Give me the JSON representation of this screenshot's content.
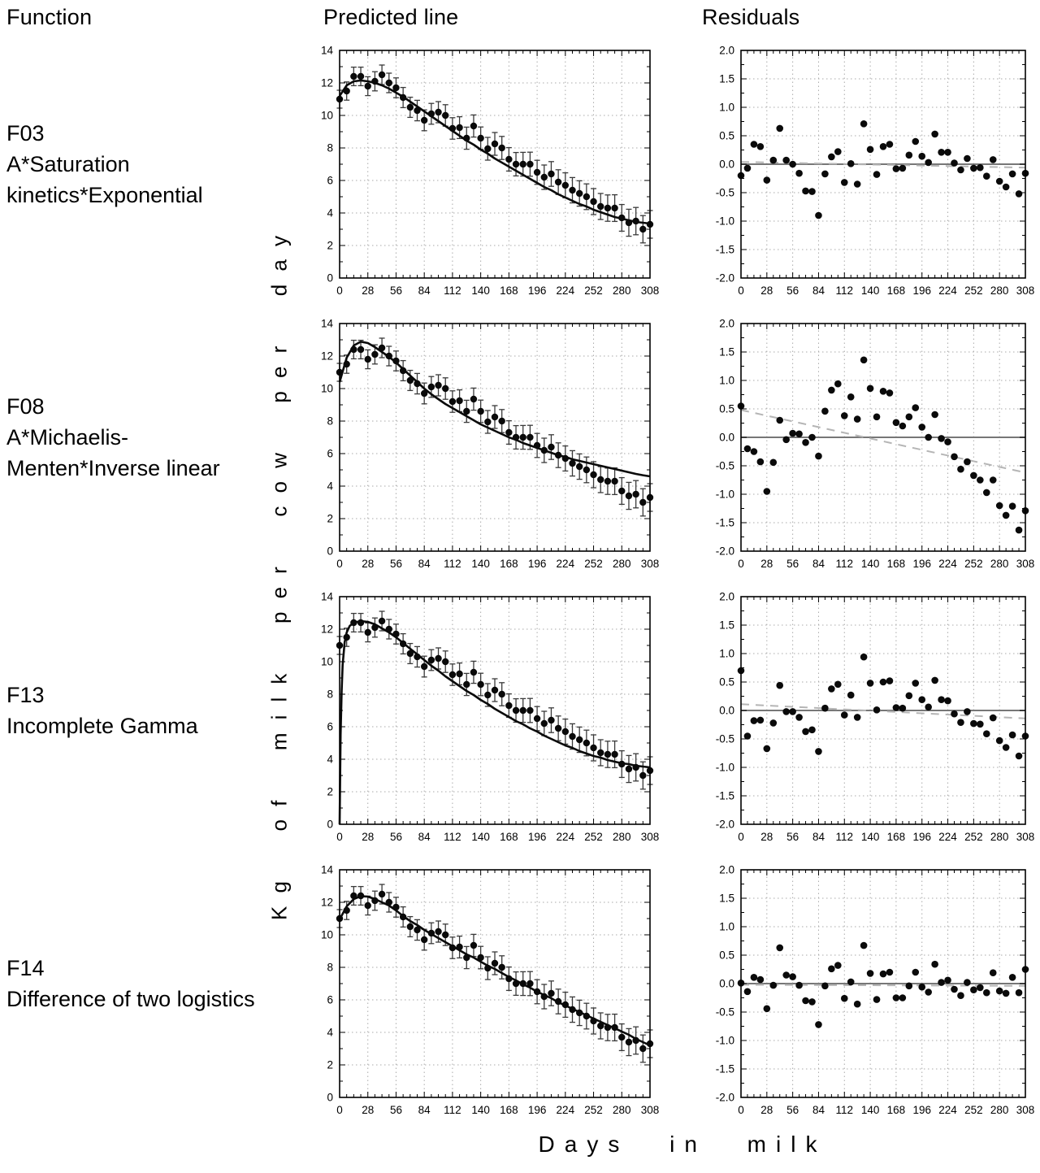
{
  "headers": {
    "function": "Function",
    "predicted": "Predicted line",
    "residuals": "Residuals"
  },
  "axes": {
    "y_label": "Kg of milk per cow per day",
    "x_label": "Days in milk",
    "predicted": {
      "xlim": [
        0,
        308
      ],
      "ylim": [
        0,
        14
      ],
      "x_ticks": [
        0,
        28,
        56,
        84,
        112,
        140,
        168,
        196,
        224,
        252,
        280,
        308
      ],
      "y_ticks": [
        0,
        2,
        4,
        6,
        8,
        10,
        12,
        14
      ],
      "y_tick_labels": [
        "0",
        "2",
        "4",
        "6",
        "8",
        "10",
        "12",
        "14"
      ],
      "x_minor_step": 7,
      "y_minor_step": 1,
      "grid": true
    },
    "residuals": {
      "xlim": [
        0,
        308
      ],
      "ylim": [
        -2,
        2
      ],
      "x_ticks": [
        0,
        28,
        56,
        84,
        112,
        140,
        168,
        196,
        224,
        252,
        280,
        308
      ],
      "y_ticks": [
        -2,
        -1.5,
        -1,
        -0.5,
        0,
        0.5,
        1,
        1.5,
        2
      ],
      "y_tick_labels": [
        "-2.0",
        "-1.5",
        "-1.0",
        "-0.5",
        "0.0",
        "0.5",
        "1.0",
        "1.5",
        "2.0"
      ],
      "x_minor_step": 7,
      "y_minor_step": 0.25,
      "grid": true,
      "zero_line": true
    }
  },
  "chart_data": {
    "type": "small-multiples",
    "description": "4 rows: lactation curve fits (scatter with error bars + fitted line) and residual scatter plots",
    "x_days": [
      0,
      7,
      14,
      21,
      28,
      35,
      42,
      49,
      56,
      63,
      70,
      77,
      84,
      91,
      98,
      105,
      112,
      119,
      126,
      133,
      140,
      147,
      154,
      161,
      168,
      175,
      182,
      189,
      196,
      203,
      210,
      217,
      224,
      231,
      238,
      245,
      252,
      259,
      266,
      273,
      280,
      287,
      294,
      301,
      308
    ],
    "observed": [
      11.0,
      11.5,
      12.4,
      12.4,
      11.8,
      12.1,
      12.5,
      12.0,
      11.7,
      11.1,
      10.5,
      10.3,
      9.7,
      10.1,
      10.2,
      10.0,
      9.2,
      9.25,
      8.6,
      9.35,
      8.6,
      7.95,
      8.25,
      8.0,
      7.3,
      7.0,
      7.0,
      7.0,
      6.5,
      6.2,
      6.4,
      5.9,
      5.7,
      5.4,
      5.2,
      5.0,
      4.7,
      4.4,
      4.3,
      4.3,
      3.7,
      3.4,
      3.5,
      3.0,
      3.3
    ],
    "error_bars": [
      0.55,
      0.56,
      0.57,
      0.57,
      0.58,
      0.59,
      0.6,
      0.6,
      0.61,
      0.62,
      0.62,
      0.63,
      0.64,
      0.64,
      0.65,
      0.66,
      0.66,
      0.67,
      0.68,
      0.68,
      0.69,
      0.7,
      0.7,
      0.71,
      0.72,
      0.72,
      0.73,
      0.74,
      0.74,
      0.75,
      0.76,
      0.76,
      0.77,
      0.78,
      0.78,
      0.79,
      0.8,
      0.8,
      0.81,
      0.82,
      0.82,
      0.83,
      0.84,
      0.84,
      0.85
    ],
    "rows": [
      {
        "function_id": "F03",
        "function_name": "A*Saturation kinetics*Exponential",
        "predicted_curve": {
          "x": [
            0,
            7,
            14,
            21,
            28,
            35,
            42,
            49,
            56,
            63,
            70,
            77,
            84,
            91,
            98,
            105,
            112,
            119,
            126,
            133,
            140,
            147,
            154,
            161,
            168,
            175,
            182,
            189,
            196,
            203,
            210,
            217,
            224,
            231,
            238,
            245,
            252,
            259,
            266,
            273,
            280,
            287,
            294,
            301,
            308
          ],
          "y": [
            11.2,
            11.85,
            12.1,
            12.15,
            12.1,
            12.0,
            11.85,
            11.65,
            11.4,
            11.15,
            10.85,
            10.55,
            10.25,
            9.95,
            9.65,
            9.35,
            9.05,
            8.75,
            8.45,
            8.2,
            7.9,
            7.65,
            7.35,
            7.1,
            6.85,
            6.6,
            6.35,
            6.1,
            5.85,
            5.6,
            5.4,
            5.15,
            4.95,
            4.75,
            4.55,
            4.4,
            4.2,
            4.05,
            3.9,
            3.75,
            3.65,
            3.55,
            3.45,
            3.4,
            3.35
          ]
        },
        "residuals": [
          -0.2,
          -0.07,
          0.35,
          0.31,
          -0.28,
          0.07,
          0.63,
          0.07,
          0.0,
          -0.16,
          -0.47,
          -0.48,
          -0.9,
          -0.17,
          0.13,
          0.22,
          -0.32,
          0.01,
          -0.35,
          0.71,
          0.26,
          -0.18,
          0.31,
          0.35,
          -0.08,
          -0.07,
          0.16,
          0.4,
          0.14,
          0.03,
          0.53,
          0.21,
          0.21,
          0.02,
          -0.1,
          0.1,
          -0.07,
          -0.06,
          -0.21,
          0.08,
          -0.3,
          -0.4,
          -0.17,
          -0.52,
          -0.16
        ],
        "residual_trend": {
          "x": [
            0,
            308
          ],
          "y": [
            0.04,
            -0.06
          ]
        }
      },
      {
        "function_id": "F08",
        "function_name": "A*Michaelis-Menten*Inverse linear",
        "predicted_curve": {
          "x": [
            0,
            7,
            14,
            21,
            28,
            35,
            42,
            49,
            56,
            63,
            70,
            77,
            84,
            91,
            98,
            105,
            112,
            119,
            126,
            133,
            140,
            147,
            154,
            161,
            168,
            175,
            182,
            189,
            196,
            203,
            210,
            217,
            224,
            231,
            238,
            245,
            252,
            259,
            266,
            273,
            280,
            287,
            294,
            301,
            308
          ],
          "y": [
            10.4,
            11.9,
            12.65,
            12.88,
            12.8,
            12.55,
            12.25,
            11.95,
            11.6,
            11.2,
            10.8,
            10.4,
            10.0,
            9.65,
            9.35,
            9.05,
            8.8,
            8.55,
            8.3,
            8.05,
            7.8,
            7.6,
            7.4,
            7.2,
            7.0,
            6.85,
            6.65,
            6.5,
            6.35,
            6.2,
            6.05,
            5.9,
            5.8,
            5.65,
            5.55,
            5.45,
            5.35,
            5.25,
            5.15,
            5.05,
            4.95,
            4.85,
            4.75,
            4.67,
            4.6
          ]
        },
        "residuals": [
          0.55,
          -0.2,
          -0.25,
          -0.43,
          -0.95,
          -0.44,
          0.3,
          -0.04,
          0.07,
          0.06,
          -0.09,
          0.0,
          -0.33,
          0.46,
          0.83,
          0.94,
          0.38,
          0.71,
          0.32,
          1.36,
          0.86,
          0.36,
          0.81,
          0.78,
          0.26,
          0.2,
          0.36,
          0.52,
          0.18,
          0.0,
          0.4,
          -0.02,
          -0.08,
          -0.34,
          -0.56,
          -0.43,
          -0.67,
          -0.75,
          -0.97,
          -0.75,
          -1.2,
          -1.37,
          -1.21,
          -1.63,
          -1.29
        ],
        "residual_trend": {
          "x": [
            0,
            308
          ],
          "y": [
            0.48,
            -0.62
          ]
        }
      },
      {
        "function_id": "F13",
        "function_name": "Incomplete Gamma",
        "predicted_curve": {
          "x": [
            0,
            1,
            2,
            3,
            5,
            7,
            10,
            14,
            21,
            28,
            35,
            42,
            49,
            56,
            63,
            70,
            77,
            84,
            91,
            98,
            105,
            112,
            119,
            126,
            133,
            140,
            147,
            154,
            161,
            168,
            175,
            182,
            189,
            196,
            203,
            210,
            217,
            224,
            231,
            238,
            245,
            252,
            259,
            266,
            273,
            280,
            287,
            294,
            301,
            308
          ],
          "y": [
            0,
            5.5,
            8.2,
            9.8,
            11.2,
            11.8,
            12.2,
            12.4,
            12.5,
            12.45,
            12.3,
            12.05,
            11.8,
            11.5,
            11.15,
            10.8,
            10.45,
            10.1,
            9.75,
            9.45,
            9.1,
            8.8,
            8.5,
            8.2,
            7.95,
            7.65,
            7.4,
            7.1,
            6.85,
            6.6,
            6.35,
            6.15,
            5.9,
            5.7,
            5.45,
            5.25,
            5.05,
            4.85,
            4.7,
            4.5,
            4.35,
            4.2,
            4.1,
            3.95,
            3.85,
            3.75,
            3.7,
            3.6,
            3.55,
            3.5
          ]
        },
        "residuals": [
          0.7,
          -0.45,
          -0.18,
          -0.17,
          -0.67,
          -0.22,
          0.44,
          -0.02,
          -0.02,
          -0.12,
          -0.37,
          -0.34,
          -0.72,
          0.04,
          0.38,
          0.46,
          -0.08,
          0.27,
          -0.12,
          0.94,
          0.48,
          0.01,
          0.5,
          0.52,
          0.05,
          0.04,
          0.26,
          0.48,
          0.19,
          0.06,
          0.53,
          0.19,
          0.17,
          -0.06,
          -0.21,
          -0.02,
          -0.23,
          -0.24,
          -0.41,
          -0.13,
          -0.53,
          -0.65,
          -0.43,
          -0.8,
          -0.45
        ],
        "residual_trend": {
          "x": [
            0,
            308
          ],
          "y": [
            0.11,
            -0.14
          ]
        }
      },
      {
        "function_id": "F14",
        "function_name": "Difference of two logistics",
        "predicted_curve": {
          "x": [
            0,
            7,
            14,
            21,
            28,
            35,
            42,
            49,
            56,
            63,
            70,
            77,
            84,
            91,
            98,
            105,
            112,
            119,
            126,
            133,
            140,
            147,
            154,
            161,
            168,
            175,
            182,
            189,
            196,
            203,
            210,
            217,
            224,
            231,
            238,
            245,
            252,
            259,
            266,
            273,
            280,
            287,
            294,
            301,
            308
          ],
          "y": [
            10.95,
            11.75,
            12.2,
            12.38,
            12.35,
            12.2,
            12.0,
            11.8,
            11.5,
            11.15,
            10.85,
            10.6,
            10.3,
            10.05,
            9.8,
            9.55,
            9.3,
            9.05,
            8.8,
            8.6,
            8.35,
            8.1,
            7.9,
            7.65,
            7.4,
            7.2,
            6.95,
            6.75,
            6.5,
            6.3,
            6.1,
            5.85,
            5.65,
            5.45,
            5.25,
            5.05,
            4.85,
            4.65,
            4.45,
            4.25,
            4.05,
            3.85,
            3.6,
            3.4,
            3.2
          ]
        },
        "residuals": [
          0.01,
          -0.14,
          0.11,
          0.07,
          -0.44,
          -0.03,
          0.63,
          0.15,
          0.12,
          -0.03,
          -0.3,
          -0.32,
          -0.72,
          -0.04,
          0.26,
          0.32,
          -0.26,
          0.03,
          -0.36,
          0.67,
          0.18,
          -0.28,
          0.17,
          0.2,
          -0.25,
          -0.25,
          -0.04,
          0.2,
          -0.06,
          -0.15,
          0.34,
          0.02,
          0.06,
          -0.1,
          -0.21,
          0.02,
          -0.11,
          -0.07,
          -0.16,
          0.19,
          -0.13,
          -0.17,
          0.11,
          -0.16,
          0.25
        ],
        "residual_trend": {
          "x": [
            0,
            308
          ],
          "y": [
            -0.02,
            -0.04
          ]
        }
      }
    ]
  }
}
